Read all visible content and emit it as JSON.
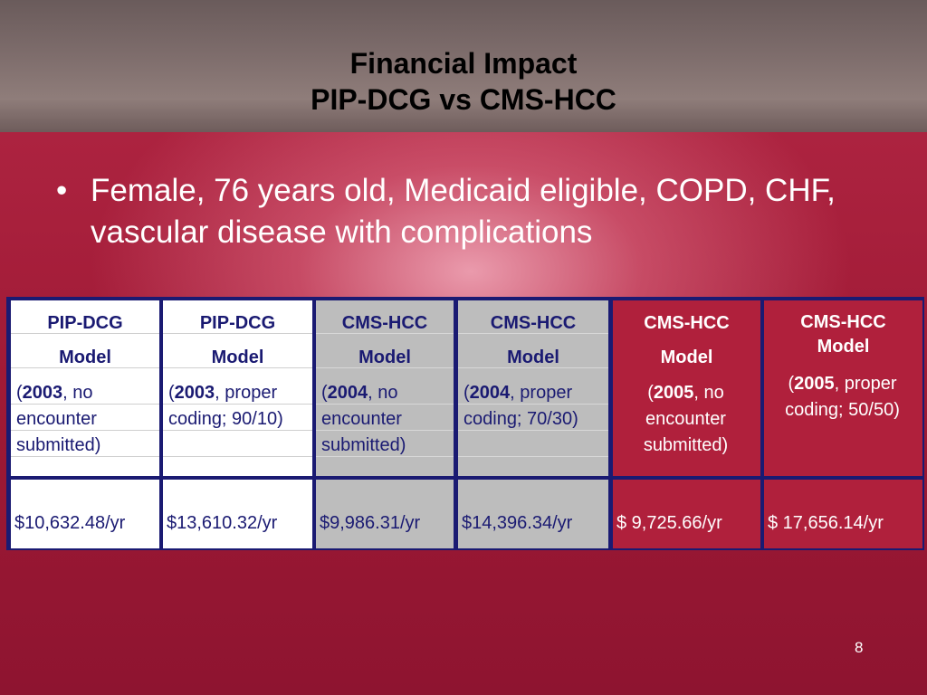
{
  "slide": {
    "title_line1": "Financial Impact",
    "title_line2": "PIP-DCG vs CMS-HCC",
    "bullet_symbol": "•",
    "bullet": "Female, 76 years old, Medicaid eligible, COPD, CHF, vascular disease with complications",
    "page_number": "8"
  },
  "colors": {
    "navy": "#1a1a72",
    "white_column": "#ffffff",
    "gray_column": "#bdbdbd",
    "red_column": "#b0203c"
  },
  "table": {
    "columns": [
      {
        "title": "PIP-DCG",
        "model": "Model",
        "open": "(",
        "year": "2003",
        "rest": ", no encounter submitted)",
        "value": "$10,632.48/yr"
      },
      {
        "title": "PIP-DCG",
        "model": "Model",
        "open": "(",
        "year": "2003",
        "rest": ", proper coding; 90/10)",
        "value": "$13,610.32/yr"
      },
      {
        "title": "CMS-HCC",
        "model": "Model",
        "open": "(",
        "year": "2004",
        "rest": ", no encounter submitted)",
        "value": "$9,986.31/yr"
      },
      {
        "title": "CMS-HCC",
        "model": "Model",
        "open": "(",
        "year": "2004",
        "rest": ", proper coding; 70/30)",
        "value": "$14,396.34/yr"
      },
      {
        "title": "CMS-HCC",
        "model": "Model",
        "open": "(",
        "year": "2005",
        "rest": ", no encounter submitted)",
        "value": "$ 9,725.66/yr"
      },
      {
        "title": "CMS-HCC",
        "model": "Model",
        "open": "(",
        "year": "2005",
        "rest": ", proper coding; 50/50)",
        "value": "$ 17,656.14/yr"
      }
    ]
  }
}
